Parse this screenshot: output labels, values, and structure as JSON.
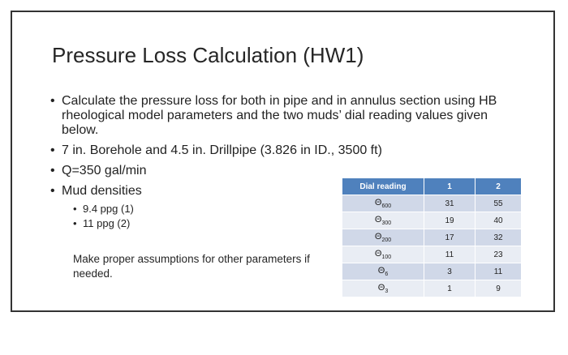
{
  "slide": {
    "title": "Pressure Loss Calculation (HW1)",
    "bullets": [
      "Calculate the pressure loss for both in pipe and in annulus section using HB rheological model parameters and the two muds’ dial reading values given below.",
      "7 in. Borehole and 4.5 in. Drillpipe (3.826 in ID., 3500 ft)",
      "Q=350 gal/min",
      "Mud densities"
    ],
    "sub_bullets": [
      "9.4 ppg (1)",
      "11 ppg (2)"
    ],
    "note": "Make proper assumptions for other parameters if needed."
  },
  "table": {
    "headers": [
      "Dial reading",
      "1",
      "2"
    ],
    "rows": [
      {
        "symbol": "Θ",
        "sub": "600",
        "v1": "31",
        "v2": "55"
      },
      {
        "symbol": "Θ",
        "sub": "300",
        "v1": "19",
        "v2": "40"
      },
      {
        "symbol": "Θ",
        "sub": "200",
        "v1": "17",
        "v2": "32"
      },
      {
        "symbol": "Θ",
        "sub": "100",
        "v1": "11",
        "v2": "23"
      },
      {
        "symbol": "Θ",
        "sub": "6",
        "v1": "3",
        "v2": "11"
      },
      {
        "symbol": "Θ",
        "sub": "3",
        "v1": "1",
        "v2": "9"
      }
    ]
  },
  "colors": {
    "header_bg": "#4f81bd",
    "row_odd": "#d0d8e8",
    "row_even": "#e9edf4",
    "border": "#333333"
  }
}
